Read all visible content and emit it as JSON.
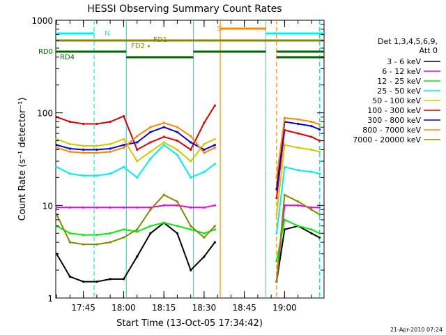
{
  "chart_data": {
    "type": "line",
    "title": "HESSI Observing Summary Count Rates",
    "xlabel": "Start Time (13-Oct-05 17:34:42)",
    "ylabel": "Count Rate (s⁻¹ detector⁻¹)",
    "y_scale": "log",
    "ylim": [
      1,
      1000
    ],
    "xlim": [
      "17:34:42",
      "19:14:42"
    ],
    "x_ticks": [
      "17:45",
      "18:00",
      "18:15",
      "18:30",
      "18:45",
      "19:00"
    ],
    "y_ticks": [
      "1",
      "10",
      "100",
      "1000"
    ],
    "grid": false,
    "footer": "21-Apr-2010 07:24",
    "legend": {
      "position": "right",
      "header": [
        "Det 1,3,4,5,6,9,",
        "Att 0"
      ],
      "entries": [
        {
          "label": "3 - 6 keV",
          "color": "#000000"
        },
        {
          "label": "6 - 12 keV",
          "color": "#ee00ee"
        },
        {
          "label": "12 - 25 keV",
          "color": "#00ee00"
        },
        {
          "label": "25 - 50 keV",
          "color": "#00eeee"
        },
        {
          "label": "50 - 100 keV",
          "color": "#cccc00"
        },
        {
          "label": "100 - 300 keV",
          "color": "#dd0000"
        },
        {
          "label": "300 - 800 keV",
          "color": "#0000dd"
        },
        {
          "label": "800 - 7000 keV",
          "color": "#ff8800"
        },
        {
          "label": "7000 - 20000 keV",
          "color": "#888800"
        }
      ]
    },
    "flag_bars": [
      {
        "label": "N",
        "color": "#00eeee",
        "segments": [
          [
            "17:34:42",
            "17:49:00"
          ],
          [
            "18:53:00",
            "19:14:42"
          ]
        ]
      },
      {
        "label": "S",
        "color": "#ff8800",
        "segments": [
          [
            "18:36:00",
            "18:53:00"
          ]
        ]
      },
      {
        "label": "FD1",
        "color": "#888800",
        "segments": [
          [
            "17:34:42",
            "19:14:42"
          ]
        ]
      },
      {
        "label": "FD2",
        "color": "#888800",
        "segments": [
          [
            "18:09:00",
            "18:09:40"
          ]
        ]
      },
      {
        "label": "RD0",
        "color": "#006600",
        "segments": [
          [
            "17:34:42",
            "18:01:00"
          ],
          [
            "18:26:00",
            "18:53:00"
          ],
          [
            "18:57:00",
            "19:14:42"
          ]
        ]
      },
      {
        "label": "RD4",
        "color": "#006600",
        "segments": [
          [
            "18:01:00",
            "18:26:00"
          ],
          [
            "18:57:00",
            "19:14:42"
          ]
        ]
      }
    ],
    "markers": [
      {
        "time": "17:49:00",
        "color": "#00eeee",
        "style": "dashed"
      },
      {
        "time": "18:01:00",
        "color": "#00eeee",
        "style": "solid"
      },
      {
        "time": "18:26:00",
        "color": "#00eeee",
        "style": "solid"
      },
      {
        "time": "18:36:00",
        "color": "#ff8800",
        "style": "solid"
      },
      {
        "time": "18:53:00",
        "color": "#00eeee",
        "style": "solid"
      },
      {
        "time": "18:57:00",
        "color": "#ff8800",
        "style": "dashed"
      },
      {
        "time": "19:13:00",
        "color": "#00eeee",
        "style": "dashed"
      }
    ],
    "series": [
      {
        "name": "3 - 6 keV",
        "color": "#000000",
        "x": [
          "17:35",
          "17:40",
          "17:45",
          "17:50",
          "17:55",
          "18:00",
          "18:05",
          "18:10",
          "18:15",
          "18:20",
          "18:25",
          "18:30",
          "18:34",
          "18:57",
          "19:00",
          "19:05",
          "19:10",
          "19:13"
        ],
        "y": [
          3.0,
          1.7,
          1.5,
          1.5,
          1.6,
          1.6,
          2.8,
          5.0,
          6.5,
          5.0,
          2.0,
          2.8,
          4.0,
          1.5,
          5.5,
          6.0,
          5.0,
          4.5
        ]
      },
      {
        "name": "6 - 12 keV",
        "color": "#ee00ee",
        "x": [
          "17:35",
          "17:40",
          "17:45",
          "17:50",
          "17:55",
          "18:00",
          "18:05",
          "18:10",
          "18:15",
          "18:20",
          "18:25",
          "18:30",
          "18:34",
          "18:57",
          "19:00",
          "19:05",
          "19:10",
          "19:13"
        ],
        "y": [
          9.5,
          9.5,
          9.5,
          9.5,
          9.5,
          9.5,
          9.5,
          9.5,
          10,
          10,
          9.5,
          9.5,
          10,
          1.5,
          10,
          10,
          9.5,
          9.5
        ]
      },
      {
        "name": "12 - 25 keV",
        "color": "#00ee00",
        "x": [
          "17:35",
          "17:40",
          "17:45",
          "17:50",
          "17:55",
          "18:00",
          "18:05",
          "18:10",
          "18:15",
          "18:20",
          "18:25",
          "18:30",
          "18:34",
          "18:57",
          "19:00",
          "19:05",
          "19:10",
          "19:13"
        ],
        "y": [
          6.0,
          5.0,
          4.8,
          4.8,
          5.0,
          5.5,
          5.2,
          6.0,
          6.5,
          6.0,
          5.5,
          5.0,
          5.5,
          2.5,
          7.0,
          6.0,
          5.5,
          5.0
        ]
      },
      {
        "name": "25 - 50 keV",
        "color": "#00eeee",
        "x": [
          "17:35",
          "17:40",
          "17:45",
          "17:50",
          "17:55",
          "18:00",
          "18:05",
          "18:10",
          "18:15",
          "18:20",
          "18:25",
          "18:30",
          "18:34",
          "18:57",
          "19:00",
          "19:05",
          "19:10",
          "19:13"
        ],
        "y": [
          26,
          22,
          21,
          21,
          22,
          26,
          20,
          32,
          45,
          35,
          20,
          23,
          28,
          5.0,
          26,
          24,
          23,
          22
        ]
      },
      {
        "name": "50 - 100 keV",
        "color": "#cccc00",
        "x": [
          "17:35",
          "17:40",
          "17:45",
          "17:50",
          "17:55",
          "18:00",
          "18:05",
          "18:10",
          "18:15",
          "18:20",
          "18:25",
          "18:30",
          "18:34",
          "18:57",
          "19:00",
          "19:05",
          "19:10",
          "19:13"
        ],
        "y": [
          52,
          46,
          44,
          44,
          46,
          52,
          30,
          38,
          48,
          40,
          30,
          46,
          52,
          8.0,
          45,
          42,
          40,
          38
        ]
      },
      {
        "name": "100 - 300 keV",
        "color": "#dd0000",
        "x": [
          "17:35",
          "17:40",
          "17:45",
          "17:50",
          "17:55",
          "18:00",
          "18:05",
          "18:10",
          "18:15",
          "18:20",
          "18:25",
          "18:30",
          "18:34",
          "18:57",
          "19:00",
          "19:05",
          "19:10",
          "19:13"
        ],
        "y": [
          90,
          80,
          76,
          76,
          80,
          92,
          40,
          48,
          55,
          50,
          40,
          78,
          120,
          12,
          65,
          60,
          55,
          50
        ]
      },
      {
        "name": "300 - 800 keV",
        "color": "#0000dd",
        "x": [
          "17:35",
          "17:40",
          "17:45",
          "17:50",
          "17:55",
          "18:00",
          "18:05",
          "18:10",
          "18:15",
          "18:20",
          "18:25",
          "18:30",
          "18:34",
          "18:57",
          "19:00",
          "19:05",
          "19:10",
          "19:13"
        ],
        "y": [
          45,
          41,
          40,
          40,
          41,
          45,
          48,
          62,
          70,
          62,
          48,
          40,
          45,
          15,
          80,
          76,
          72,
          66
        ]
      },
      {
        "name": "800 - 7000 keV",
        "color": "#ff8800",
        "x": [
          "17:35",
          "17:40",
          "17:45",
          "17:50",
          "17:55",
          "18:00",
          "18:05",
          "18:10",
          "18:15",
          "18:20",
          "18:25",
          "18:30",
          "18:34",
          "18:57",
          "19:00",
          "19:05",
          "19:10",
          "19:13"
        ],
        "y": [
          42,
          38,
          37,
          37,
          38,
          42,
          56,
          70,
          78,
          70,
          56,
          37,
          42,
          20,
          88,
          85,
          80,
          75
        ]
      },
      {
        "name": "7000 - 20000 keV",
        "color": "#888800",
        "x": [
          "17:35",
          "17:40",
          "17:45",
          "17:50",
          "17:55",
          "18:00",
          "18:05",
          "18:10",
          "18:15",
          "18:20",
          "18:25",
          "18:30",
          "18:34",
          "18:57",
          "19:00",
          "19:05",
          "19:10",
          "19:13"
        ],
        "y": [
          8.0,
          4.0,
          3.8,
          3.8,
          4.0,
          4.5,
          5.5,
          9.0,
          13,
          11,
          6.0,
          4.5,
          6.0,
          1.5,
          13,
          11,
          9.0,
          8.0
        ]
      }
    ]
  }
}
